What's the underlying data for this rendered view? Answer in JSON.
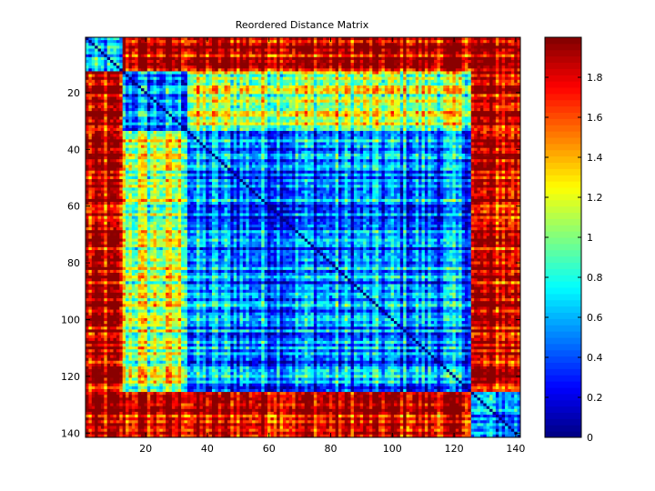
{
  "chart_data": {
    "type": "heatmap",
    "title": "Reordered Distance Matrix",
    "xlabel": "",
    "ylabel": "",
    "matrix_size": 141,
    "x_ticks": [
      20,
      40,
      60,
      80,
      100,
      120,
      140
    ],
    "y_ticks": [
      20,
      40,
      60,
      80,
      100,
      120,
      140
    ],
    "colorbar": {
      "range": [
        0,
        2
      ],
      "ticks": [
        0,
        0.2,
        0.4,
        0.6,
        0.8,
        1,
        1.2,
        1.4,
        1.6,
        1.8
      ],
      "tick_labels": [
        "0",
        "0.2",
        "0.4",
        "0.6",
        "0.8",
        "1",
        "1.2",
        "1.4",
        "1.6",
        "1.8"
      ],
      "colormap": "jet"
    },
    "diagonal_value": 0,
    "block_structure": {
      "low_distance_blocks": [
        [
          1,
          12
        ],
        [
          13,
          33
        ],
        [
          34,
          125
        ],
        [
          126,
          141
        ]
      ],
      "low_distance_value": 0.5,
      "high_distance_value": 1.8
    }
  }
}
